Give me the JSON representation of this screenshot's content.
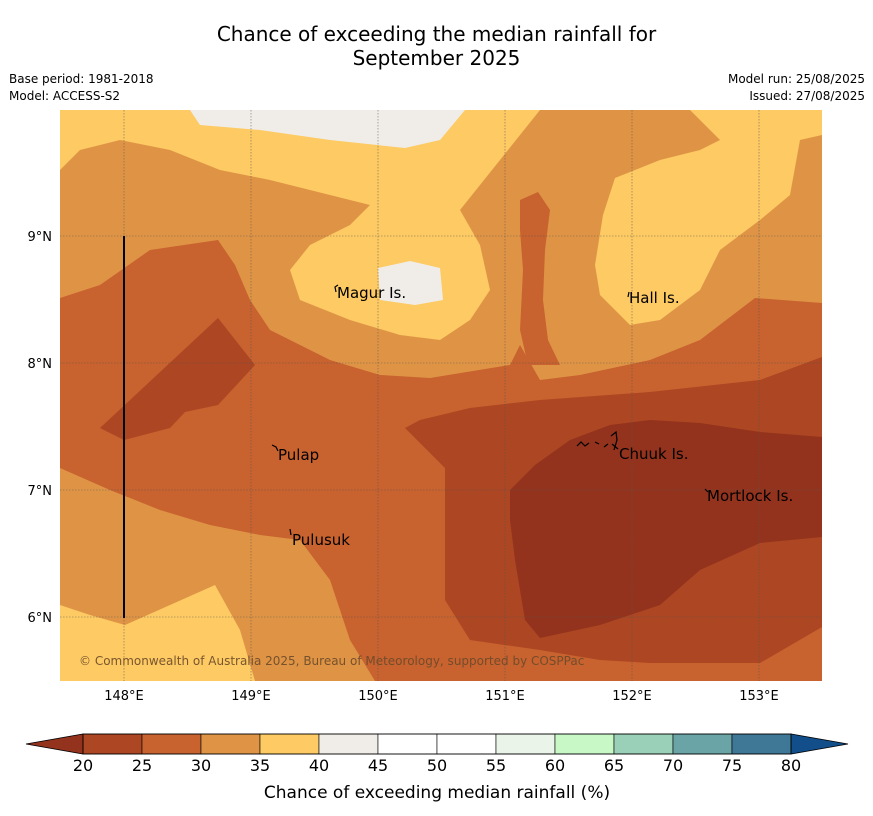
{
  "title_line1": "Chance of exceeding the median rainfall for",
  "title_line2": "September 2025",
  "meta": {
    "base_period": "Base period: 1981-2018",
    "model": "Model: ACCESS-S2",
    "model_run": "Model run: 25/08/2025",
    "issued": "Issued: 27/08/2025"
  },
  "map": {
    "x_ticks": [
      "148°E",
      "149°E",
      "150°E",
      "151°E",
      "152°E",
      "153°E"
    ],
    "y_ticks": [
      "9°N",
      "8°N",
      "7°N",
      "6°N"
    ],
    "places": [
      {
        "name": "Magur Is."
      },
      {
        "name": "Hall Is."
      },
      {
        "name": "Pulap"
      },
      {
        "name": "Chuuk Is."
      },
      {
        "name": "Mortlock Is."
      },
      {
        "name": "Pulusuk"
      }
    ],
    "copyright": "© Commonwealth of Australia 2025, Bureau of Meteorology, supported by COSPPac"
  },
  "colorbar": {
    "ticks": [
      "20",
      "25",
      "30",
      "35",
      "40",
      "45",
      "50",
      "55",
      "60",
      "65",
      "70",
      "75",
      "80"
    ],
    "colors": [
      "#ad4622",
      "#c8622f",
      "#df9445",
      "#fdca63",
      "#f0ede9",
      "#ffffff",
      "#ffffff",
      "#eaf4e8",
      "#c9f8c7",
      "#99d0b7",
      "#6aa4a7",
      "#3f7797"
    ],
    "under_color": "#93331d",
    "over_color": "#124e8a",
    "label": "Chance of exceeding median rainfall (%)"
  },
  "legend_colors": {
    "c20_25": "#ad4622",
    "c25_30": "#c8622f",
    "c30_35": "#df9445",
    "c35_40": "#fdca63",
    "c40_45": "#f0ede9",
    "below20": "#93331d"
  }
}
